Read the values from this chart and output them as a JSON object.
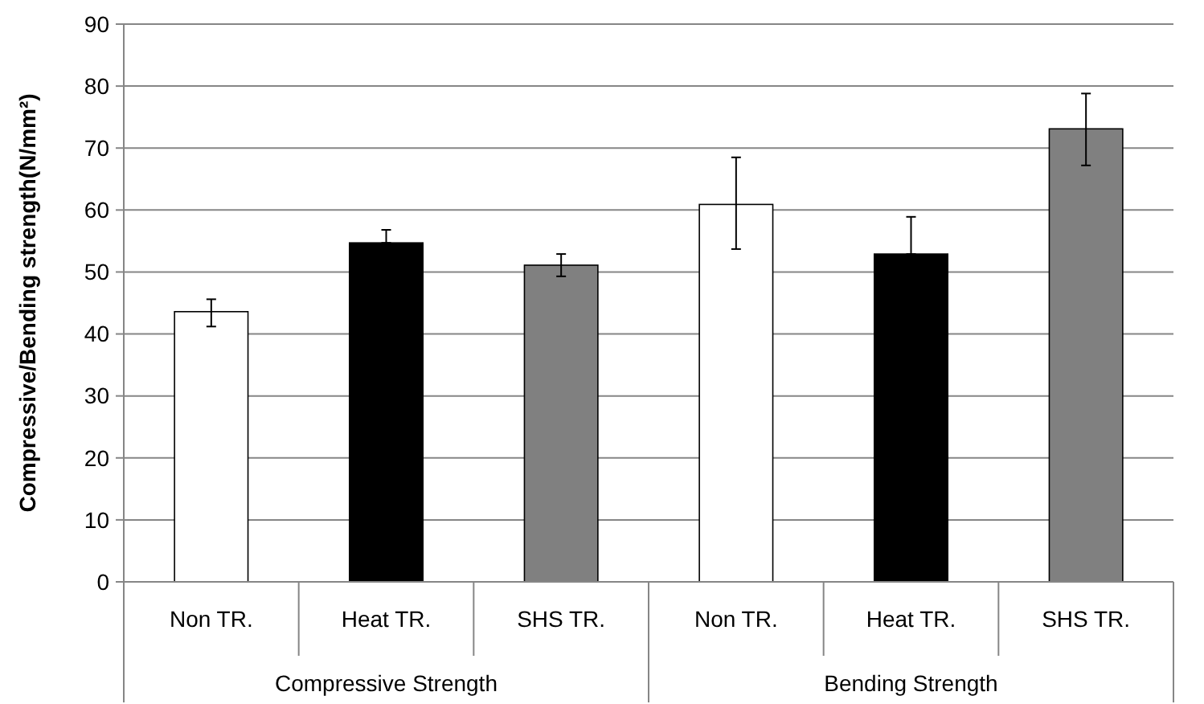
{
  "chart_data": {
    "type": "bar",
    "ylabel": "Compressive/Bending strength(N/mm²)",
    "categories": [
      "Non TR.",
      "Heat TR.",
      "SHS TR.",
      "Non TR.",
      "Heat TR.",
      "SHS TR."
    ],
    "values": [
      43.6,
      54.7,
      51.1,
      60.9,
      52.9,
      73.1
    ],
    "colors": [
      "#ffffff",
      "#000000",
      "#808080",
      "#ffffff",
      "#000000",
      "#808080"
    ],
    "errors": [
      [
        41.2,
        45.6
      ],
      [
        54.7,
        56.8
      ],
      [
        49.3,
        52.9
      ],
      [
        53.7,
        68.5
      ],
      [
        52.9,
        58.9
      ],
      [
        67.2,
        78.8
      ]
    ],
    "ylim": [
      0,
      90
    ],
    "yticks": [
      0,
      10,
      20,
      30,
      40,
      50,
      60,
      70,
      80,
      90
    ],
    "grid": "y",
    "annotations": [
      "Compressive Strength",
      "Bending Strength"
    ]
  }
}
